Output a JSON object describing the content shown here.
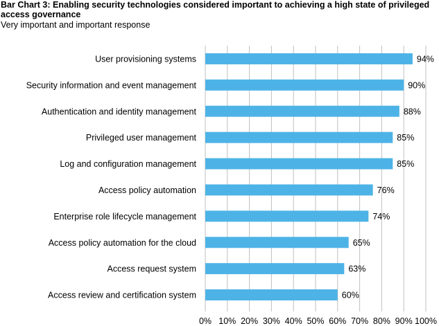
{
  "chart_data": {
    "type": "bar",
    "orientation": "horizontal",
    "title": "Bar Chart 3: Enabling security technologies considered important to achieving a high state of privileged access governance",
    "subtitle": "Very important and important response",
    "categories": [
      "User provisioning systems",
      "Security information and event management",
      "Authentication and identity management",
      "Privileged user management",
      "Log and configuration management",
      "Access policy automation",
      "Enterprise role lifecycle management",
      "Access policy automation for the cloud",
      "Access request system",
      "Access review and certification system"
    ],
    "values": [
      94,
      90,
      88,
      85,
      85,
      76,
      74,
      65,
      63,
      60
    ],
    "value_labels": [
      "94%",
      "90%",
      "88%",
      "85%",
      "85%",
      "76%",
      "74%",
      "65%",
      "63%",
      "60%"
    ],
    "xlim": [
      0,
      100
    ],
    "x_ticks": [
      "0%",
      "10%",
      "20%",
      "30%",
      "40%",
      "50%",
      "60%",
      "70%",
      "80%",
      "90%",
      "100%"
    ],
    "grid": true,
    "bar_color": "#4db3e6",
    "grid_color": "#bfbfbf"
  }
}
